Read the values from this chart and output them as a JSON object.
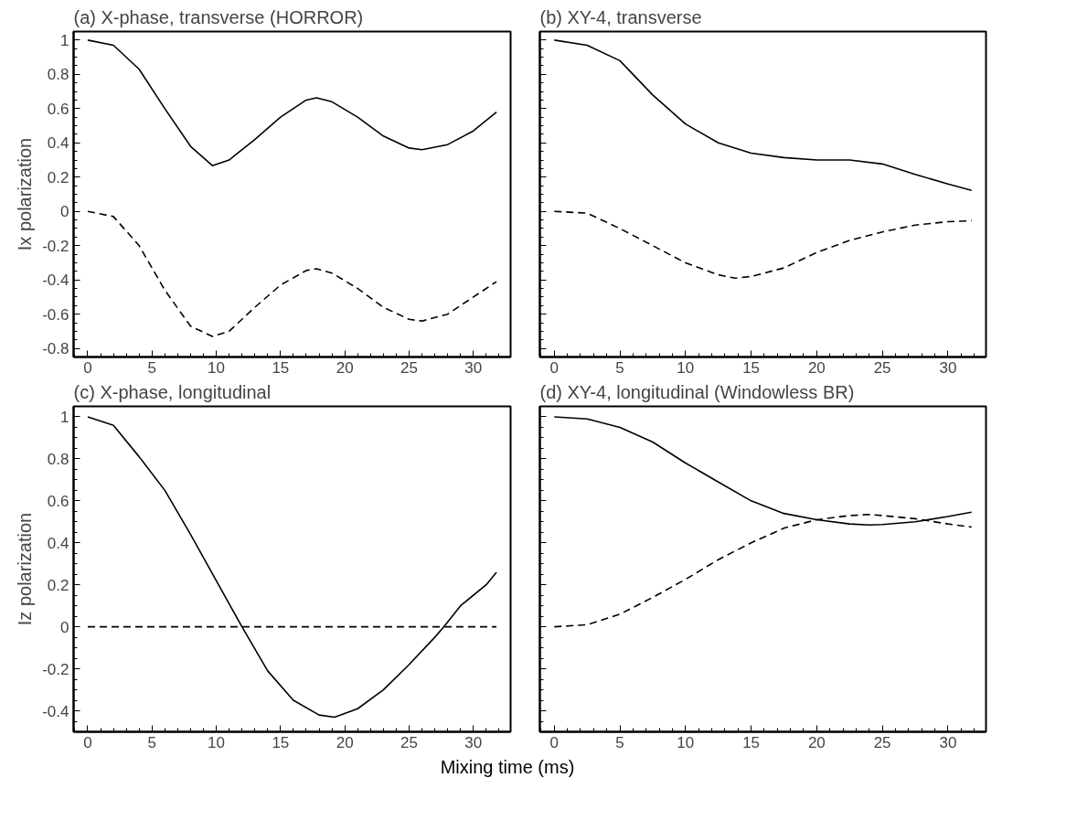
{
  "chart_data": [
    {
      "type": "line",
      "title": "(a) X-phase, transverse (HORROR)",
      "ylabel": "Ix polarization",
      "xlim": [
        -1.1,
        32.9
      ],
      "ylim": [
        -0.85,
        1.05
      ],
      "xticks": [
        0,
        5,
        10,
        15,
        20,
        25,
        30
      ],
      "yticks": [
        -0.8,
        -0.6,
        -0.4,
        -0.2,
        0,
        0.2,
        0.4,
        0.6,
        0.8,
        1
      ],
      "series": [
        {
          "color": "#000000",
          "line_style": "solid",
          "x": [
            0,
            2,
            4,
            6,
            8,
            9.7,
            11,
            13,
            15,
            17,
            17.8,
            19,
            21,
            23,
            25,
            26,
            28,
            30,
            31.8
          ],
          "values": [
            1,
            0.97,
            0.83,
            0.6,
            0.38,
            0.267,
            0.3,
            0.42,
            0.55,
            0.65,
            0.663,
            0.64,
            0.55,
            0.44,
            0.37,
            0.36,
            0.39,
            0.47,
            0.58
          ]
        },
        {
          "color": "#000000",
          "line_style": "dashed",
          "x": [
            0,
            2,
            4,
            6,
            8,
            9.7,
            11,
            13,
            15,
            17,
            17.8,
            19,
            21,
            23,
            25,
            26,
            28,
            30,
            31.8
          ],
          "values": [
            0,
            -0.03,
            -0.2,
            -0.46,
            -0.67,
            -0.73,
            -0.7,
            -0.56,
            -0.43,
            -0.345,
            -0.335,
            -0.36,
            -0.45,
            -0.56,
            -0.63,
            -0.64,
            -0.6,
            -0.5,
            -0.41
          ]
        }
      ]
    },
    {
      "type": "line",
      "title": "(b) XY-4, transverse",
      "tick_labels": "x",
      "xlim": [
        -1.1,
        32.9
      ],
      "ylim": [
        -0.85,
        1.05
      ],
      "xticks": [
        0,
        5,
        10,
        15,
        20,
        25,
        30
      ],
      "yticks": [
        -0.8,
        -0.6,
        -0.4,
        -0.2,
        0,
        0.2,
        0.4,
        0.6,
        0.8,
        1
      ],
      "series": [
        {
          "color": "#000000",
          "line_style": "solid",
          "x": [
            0,
            2.5,
            5,
            7.5,
            10,
            12.5,
            15,
            17.5,
            20,
            22.5,
            25,
            27.5,
            30,
            31.8
          ],
          "values": [
            1,
            0.97,
            0.88,
            0.68,
            0.51,
            0.4,
            0.34,
            0.314,
            0.3,
            0.3,
            0.277,
            0.216,
            0.16,
            0.123
          ]
        },
        {
          "color": "#000000",
          "line_style": "dashed",
          "x": [
            0,
            2.5,
            5,
            7.5,
            10,
            12.5,
            13.8,
            15,
            17.5,
            20,
            22.5,
            25,
            27.5,
            30,
            31.8
          ],
          "values": [
            0,
            -0.01,
            -0.1,
            -0.2,
            -0.3,
            -0.37,
            -0.39,
            -0.38,
            -0.33,
            -0.24,
            -0.17,
            -0.12,
            -0.08,
            -0.06,
            -0.055
          ]
        }
      ]
    },
    {
      "type": "line",
      "title": "(c) X-phase, longitudinal",
      "ylabel": "Iz polarization",
      "xlabel": "Mixing time (ms)",
      "xlim": [
        -1.1,
        32.9
      ],
      "ylim": [
        -0.5,
        1.05
      ],
      "xticks": [
        0,
        5,
        10,
        15,
        20,
        25,
        30
      ],
      "yticks": [
        -0.4,
        -0.2,
        0,
        0.2,
        0.4,
        0.6,
        0.8,
        1
      ],
      "series": [
        {
          "color": "#000000",
          "line_style": "solid",
          "x": [
            0,
            2,
            4,
            6,
            8,
            10,
            12,
            14,
            16,
            18,
            19.2,
            21,
            23,
            25,
            27,
            27.7,
            29,
            31,
            31.8
          ],
          "values": [
            1,
            0.96,
            0.81,
            0.65,
            0.44,
            0.22,
            0,
            -0.21,
            -0.35,
            -0.42,
            -0.43,
            -0.39,
            -0.3,
            -0.18,
            -0.05,
            0,
            0.1,
            0.2,
            0.26
          ]
        },
        {
          "color": "#000000",
          "line_style": "dashed",
          "x": [
            0,
            31.8
          ],
          "values": [
            0,
            0
          ]
        }
      ]
    },
    {
      "type": "line",
      "title": "(d) XY-4, longitudinal (Windowless BR)",
      "tick_labels": "x",
      "xlim": [
        -1.1,
        32.9
      ],
      "ylim": [
        -0.5,
        1.05
      ],
      "xticks": [
        0,
        5,
        10,
        15,
        20,
        25,
        30
      ],
      "yticks": [
        -0.4,
        -0.2,
        0,
        0.2,
        0.4,
        0.6,
        0.8,
        1
      ],
      "series": [
        {
          "color": "#000000",
          "line_style": "solid",
          "x": [
            0,
            2.5,
            5,
            7.5,
            10,
            12.5,
            15,
            17.5,
            20,
            22.5,
            24,
            25,
            27.5,
            30,
            31.8
          ],
          "values": [
            1,
            0.99,
            0.95,
            0.88,
            0.78,
            0.69,
            0.6,
            0.54,
            0.51,
            0.49,
            0.485,
            0.487,
            0.5,
            0.525,
            0.546
          ]
        },
        {
          "color": "#000000",
          "line_style": "dashed",
          "x": [
            0,
            2.5,
            5,
            7.5,
            10,
            12.5,
            15,
            17.5,
            20,
            22.5,
            24,
            25,
            27.5,
            30,
            31.8
          ],
          "values": [
            0,
            0.01,
            0.06,
            0.14,
            0.226,
            0.32,
            0.4,
            0.47,
            0.51,
            0.53,
            0.535,
            0.53,
            0.515,
            0.49,
            0.475
          ]
        }
      ]
    }
  ]
}
